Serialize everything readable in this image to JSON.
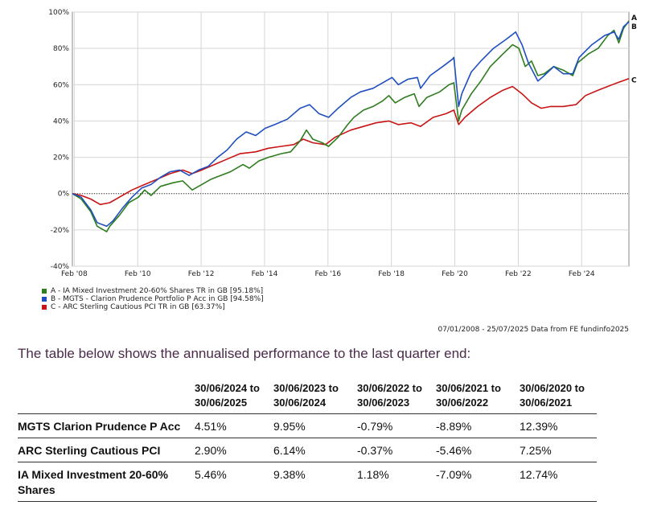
{
  "chart_data": {
    "type": "line",
    "x_tick_labels": [
      "Feb '08",
      "Feb '10",
      "Feb '12",
      "Feb '14",
      "Feb '16",
      "Feb '18",
      "Feb '20",
      "Feb '22",
      "Feb '24"
    ],
    "x_tick_years": [
      2008.08,
      2010.08,
      2012.08,
      2014.08,
      2016.08,
      2018.08,
      2020.08,
      2022.08,
      2024.08
    ],
    "xlim": [
      2008.02,
      2025.57
    ],
    "ylim": [
      -40,
      100
    ],
    "y_ticks": [
      -40,
      -20,
      0,
      20,
      40,
      60,
      80,
      100
    ],
    "y_tick_labels": [
      "-40%",
      "-20%",
      "0%",
      "20%",
      "40%",
      "60%",
      "80%",
      "100%"
    ],
    "grid": true,
    "legend_position": "bottom-left",
    "series": [
      {
        "name": "A - IA Mixed Investment 20-60% Shares TR in GB [95.18%]",
        "end_label": "A",
        "color": "#2e7d1e",
        "points": [
          [
            2008.02,
            0
          ],
          [
            2008.3,
            -3
          ],
          [
            2008.6,
            -10
          ],
          [
            2008.8,
            -18
          ],
          [
            2009.1,
            -21
          ],
          [
            2009.2,
            -18
          ],
          [
            2009.5,
            -12
          ],
          [
            2009.8,
            -5
          ],
          [
            2010.1,
            -2
          ],
          [
            2010.3,
            2
          ],
          [
            2010.5,
            -1
          ],
          [
            2010.8,
            4
          ],
          [
            2011.2,
            6
          ],
          [
            2011.5,
            7
          ],
          [
            2011.8,
            2
          ],
          [
            2012.1,
            5
          ],
          [
            2012.4,
            8
          ],
          [
            2012.7,
            10
          ],
          [
            2013.0,
            12
          ],
          [
            2013.4,
            16
          ],
          [
            2013.6,
            14
          ],
          [
            2013.9,
            18
          ],
          [
            2014.2,
            20
          ],
          [
            2014.6,
            22
          ],
          [
            2014.9,
            23
          ],
          [
            2015.2,
            29
          ],
          [
            2015.4,
            35
          ],
          [
            2015.6,
            30
          ],
          [
            2015.9,
            28
          ],
          [
            2016.1,
            26
          ],
          [
            2016.4,
            31
          ],
          [
            2016.7,
            38
          ],
          [
            2016.9,
            42
          ],
          [
            2017.2,
            46
          ],
          [
            2017.5,
            48
          ],
          [
            2017.8,
            51
          ],
          [
            2018.0,
            54
          ],
          [
            2018.2,
            50
          ],
          [
            2018.5,
            53
          ],
          [
            2018.8,
            55
          ],
          [
            2018.95,
            48
          ],
          [
            2019.2,
            53
          ],
          [
            2019.6,
            56
          ],
          [
            2019.9,
            60
          ],
          [
            2020.05,
            61
          ],
          [
            2020.2,
            40
          ],
          [
            2020.3,
            46
          ],
          [
            2020.6,
            55
          ],
          [
            2020.9,
            62
          ],
          [
            2021.2,
            70
          ],
          [
            2021.6,
            77
          ],
          [
            2021.9,
            82
          ],
          [
            2022.1,
            80
          ],
          [
            2022.3,
            70
          ],
          [
            2022.5,
            73
          ],
          [
            2022.7,
            65
          ],
          [
            2022.9,
            66
          ],
          [
            2023.2,
            70
          ],
          [
            2023.5,
            68
          ],
          [
            2023.8,
            65
          ],
          [
            2023.95,
            72
          ],
          [
            2024.3,
            77
          ],
          [
            2024.6,
            80
          ],
          [
            2024.9,
            87
          ],
          [
            2025.1,
            90
          ],
          [
            2025.25,
            83
          ],
          [
            2025.4,
            91
          ],
          [
            2025.57,
            95.18
          ]
        ]
      },
      {
        "name": "B - MGTS - Clarion Prudence Portfolio P Acc in GB [94.58%]",
        "end_label": "B",
        "color": "#1f4fbf",
        "points": [
          [
            2008.02,
            0
          ],
          [
            2008.3,
            -2
          ],
          [
            2008.6,
            -9
          ],
          [
            2008.8,
            -16
          ],
          [
            2009.1,
            -18
          ],
          [
            2009.3,
            -15
          ],
          [
            2009.6,
            -8
          ],
          [
            2009.9,
            -2
          ],
          [
            2010.2,
            3
          ],
          [
            2010.5,
            5
          ],
          [
            2010.8,
            9
          ],
          [
            2011.1,
            12
          ],
          [
            2011.4,
            13
          ],
          [
            2011.7,
            10
          ],
          [
            2012.0,
            13
          ],
          [
            2012.3,
            15
          ],
          [
            2012.6,
            20
          ],
          [
            2012.9,
            24
          ],
          [
            2013.2,
            30
          ],
          [
            2013.5,
            34
          ],
          [
            2013.8,
            32
          ],
          [
            2014.1,
            36
          ],
          [
            2014.4,
            38
          ],
          [
            2014.8,
            41
          ],
          [
            2015.2,
            47
          ],
          [
            2015.5,
            49
          ],
          [
            2015.8,
            44
          ],
          [
            2016.1,
            42
          ],
          [
            2016.4,
            47
          ],
          [
            2016.8,
            53
          ],
          [
            2017.1,
            56
          ],
          [
            2017.5,
            58
          ],
          [
            2017.9,
            62
          ],
          [
            2018.1,
            64
          ],
          [
            2018.3,
            60
          ],
          [
            2018.6,
            63
          ],
          [
            2018.9,
            64
          ],
          [
            2019.0,
            58
          ],
          [
            2019.3,
            65
          ],
          [
            2019.7,
            70
          ],
          [
            2020.0,
            74
          ],
          [
            2020.05,
            75
          ],
          [
            2020.2,
            48
          ],
          [
            2020.3,
            55
          ],
          [
            2020.6,
            67
          ],
          [
            2020.9,
            73
          ],
          [
            2021.3,
            80
          ],
          [
            2021.7,
            85
          ],
          [
            2022.0,
            89
          ],
          [
            2022.2,
            82
          ],
          [
            2022.4,
            72
          ],
          [
            2022.7,
            62
          ],
          [
            2022.9,
            65
          ],
          [
            2023.2,
            70
          ],
          [
            2023.5,
            66
          ],
          [
            2023.8,
            66
          ],
          [
            2024.0,
            75
          ],
          [
            2024.4,
            82
          ],
          [
            2024.8,
            87
          ],
          [
            2025.1,
            89
          ],
          [
            2025.25,
            85
          ],
          [
            2025.4,
            92
          ],
          [
            2025.57,
            94.58
          ]
        ]
      },
      {
        "name": "C - ARC Sterling Cautious PCI TR in GB [63.37%]",
        "end_label": "C",
        "color": "#c81414",
        "points": [
          [
            2008.02,
            0
          ],
          [
            2008.3,
            -1
          ],
          [
            2008.6,
            -3
          ],
          [
            2008.9,
            -6
          ],
          [
            2009.2,
            -5
          ],
          [
            2009.5,
            -2
          ],
          [
            2009.9,
            2
          ],
          [
            2010.3,
            5
          ],
          [
            2010.7,
            8
          ],
          [
            2011.1,
            11
          ],
          [
            2011.5,
            13
          ],
          [
            2011.8,
            11
          ],
          [
            2012.1,
            13
          ],
          [
            2012.5,
            16
          ],
          [
            2012.9,
            19
          ],
          [
            2013.3,
            22
          ],
          [
            2013.8,
            23
          ],
          [
            2014.2,
            25
          ],
          [
            2014.6,
            26
          ],
          [
            2015.0,
            27
          ],
          [
            2015.3,
            30
          ],
          [
            2015.6,
            28
          ],
          [
            2016.0,
            27
          ],
          [
            2016.3,
            31
          ],
          [
            2016.8,
            35
          ],
          [
            2017.2,
            37
          ],
          [
            2017.6,
            39
          ],
          [
            2018.0,
            40
          ],
          [
            2018.3,
            38
          ],
          [
            2018.7,
            39
          ],
          [
            2019.0,
            37
          ],
          [
            2019.4,
            42
          ],
          [
            2019.8,
            44
          ],
          [
            2020.05,
            46
          ],
          [
            2020.2,
            38
          ],
          [
            2020.4,
            42
          ],
          [
            2020.8,
            48
          ],
          [
            2021.2,
            53
          ],
          [
            2021.6,
            57
          ],
          [
            2021.9,
            59
          ],
          [
            2022.2,
            55
          ],
          [
            2022.5,
            50
          ],
          [
            2022.8,
            47
          ],
          [
            2023.1,
            48
          ],
          [
            2023.5,
            48
          ],
          [
            2023.9,
            49
          ],
          [
            2024.2,
            54
          ],
          [
            2024.6,
            57
          ],
          [
            2024.9,
            59
          ],
          [
            2025.2,
            61
          ],
          [
            2025.57,
            63.37
          ]
        ]
      }
    ],
    "source_text": "07/01/2008 - 25/07/2025 Data from FE fundinfo2025"
  },
  "intro": "The table below shows the annualised performance to the last quarter end:",
  "table": {
    "headers": [
      "",
      "30/06/2024 to 30/06/2025",
      "30/06/2023 to 30/06/2024",
      "30/06/2022 to 30/06/2023",
      "30/06/2021 to 30/06/2022",
      "30/06/2020 to 30/06/2021"
    ],
    "rows": [
      {
        "name": "MGTS Clarion Prudence P Acc",
        "values": [
          "4.51%",
          "9.95%",
          "-0.79%",
          "-8.89%",
          "12.39%"
        ]
      },
      {
        "name": "ARC Sterling Cautious PCI",
        "values": [
          "2.90%",
          "6.14%",
          "-0.37%",
          "-5.46%",
          "7.25%"
        ]
      },
      {
        "name": "IA Mixed Investment 20-60% Shares",
        "values": [
          "5.46%",
          "9.38%",
          "1.18%",
          "-7.09%",
          "12.74%"
        ]
      }
    ]
  }
}
